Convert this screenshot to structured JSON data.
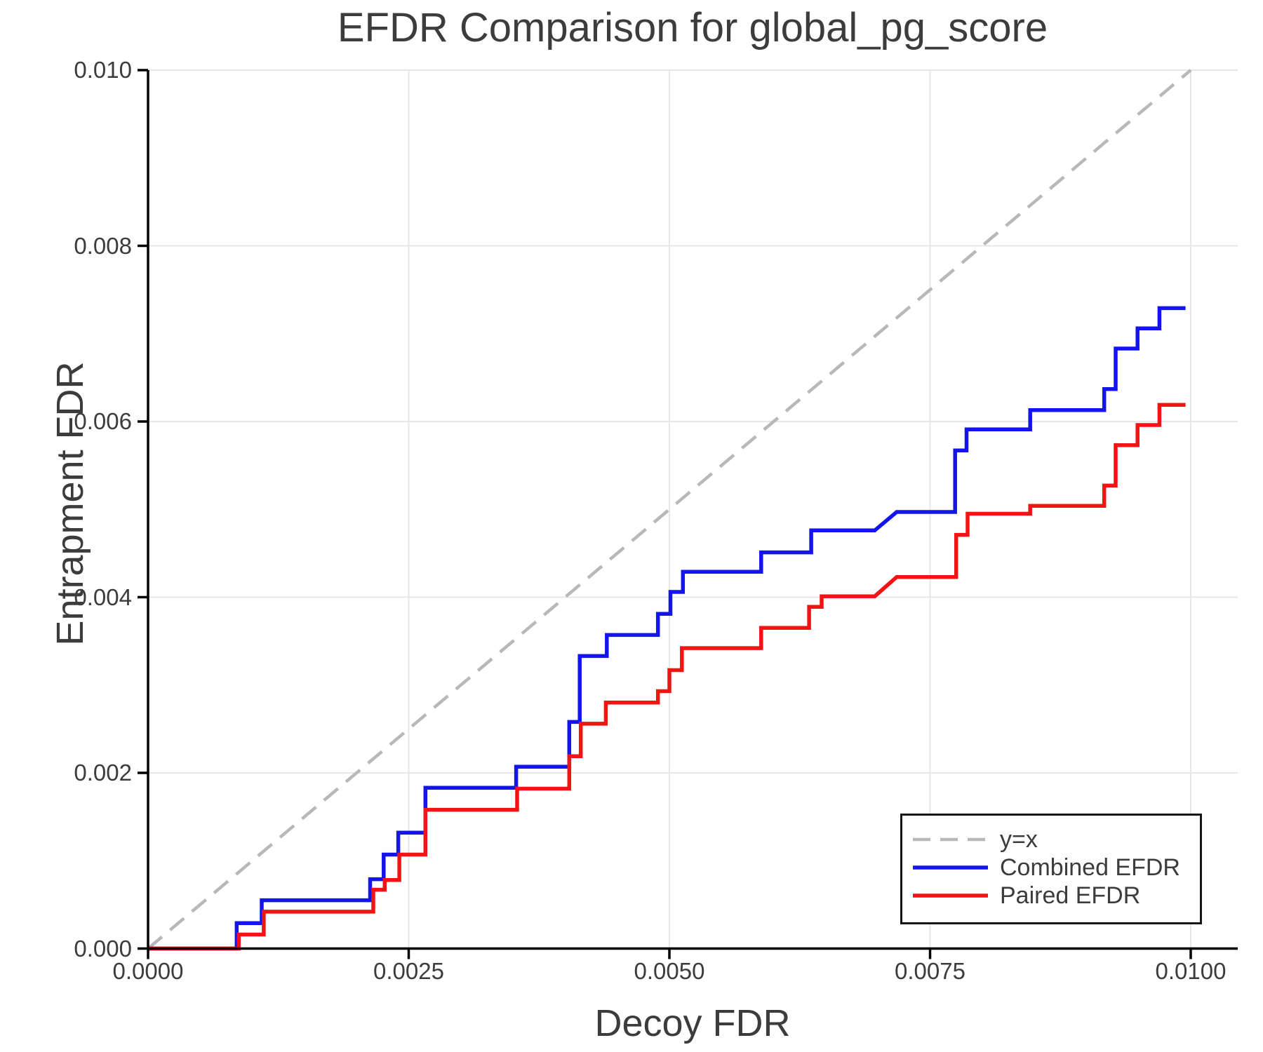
{
  "chart_data": {
    "type": "line",
    "subtype": "step-post",
    "title": "EFDR Comparison for global_pg_score",
    "xlabel": "Decoy FDR",
    "ylabel": "Entrapment FDR",
    "xlim": [
      0.0,
      0.01
    ],
    "ylim": [
      0.0,
      0.01
    ],
    "grid": true,
    "grid_color": "#e7e7e7",
    "axis_color": "#000000",
    "text_color": "#3c3c3c",
    "x_ticks": {
      "values": [
        0.0,
        0.0025,
        0.005,
        0.0075,
        0.01
      ],
      "labels": [
        "0.0000",
        "0.0025",
        "0.0050",
        "0.0075",
        "0.0100"
      ]
    },
    "y_ticks": {
      "values": [
        0.0,
        0.002,
        0.004,
        0.006,
        0.008,
        0.01
      ],
      "labels": [
        "0.000",
        "0.002",
        "0.004",
        "0.006",
        "0.008",
        "0.010"
      ]
    },
    "identity_line": {
      "label": "y=x",
      "color": "#b8b8b8",
      "style": "dashed",
      "from": [
        0.0,
        0.0
      ],
      "to": [
        0.01,
        0.01
      ]
    },
    "legend": {
      "position": "lower right",
      "entries": [
        {
          "label": "y=x",
          "color": "#b8b8b8",
          "style": "dashed"
        },
        {
          "label": "Combined EFDR",
          "color": "#1414f0",
          "style": "solid"
        },
        {
          "label": "Paired EFDR",
          "color": "#f21414",
          "style": "solid"
        }
      ]
    },
    "series": [
      {
        "name": "Combined EFDR",
        "color": "#1414f0",
        "points": [
          [
            0.0,
            0.0
          ],
          [
            0.00085,
            0.0
          ],
          [
            0.00085,
            0.00029
          ],
          [
            0.00109,
            0.00029
          ],
          [
            0.00109,
            0.00055
          ],
          [
            0.00213,
            0.00055
          ],
          [
            0.00213,
            0.00079
          ],
          [
            0.00226,
            0.00079
          ],
          [
            0.00226,
            0.00107
          ],
          [
            0.0024,
            0.00107
          ],
          [
            0.0024,
            0.00132
          ],
          [
            0.00266,
            0.00132
          ],
          [
            0.00266,
            0.00183
          ],
          [
            0.00353,
            0.00183
          ],
          [
            0.00353,
            0.00207
          ],
          [
            0.00404,
            0.00207
          ],
          [
            0.00404,
            0.00258
          ],
          [
            0.00414,
            0.00258
          ],
          [
            0.00414,
            0.00333
          ],
          [
            0.0044,
            0.00333
          ],
          [
            0.0044,
            0.00357
          ],
          [
            0.00489,
            0.00357
          ],
          [
            0.00489,
            0.00381
          ],
          [
            0.00501,
            0.00381
          ],
          [
            0.00501,
            0.00406
          ],
          [
            0.00513,
            0.00406
          ],
          [
            0.00513,
            0.00429
          ],
          [
            0.00588,
            0.00429
          ],
          [
            0.00588,
            0.00451
          ],
          [
            0.00636,
            0.00451
          ],
          [
            0.00636,
            0.00476
          ],
          [
            0.00697,
            0.00476
          ],
          [
            0.00718,
            0.00497
          ],
          [
            0.00774,
            0.00497
          ],
          [
            0.00774,
            0.00567
          ],
          [
            0.00785,
            0.00567
          ],
          [
            0.00785,
            0.00591
          ],
          [
            0.00846,
            0.00591
          ],
          [
            0.00846,
            0.00613
          ],
          [
            0.00917,
            0.00613
          ],
          [
            0.00917,
            0.00637
          ],
          [
            0.00928,
            0.00637
          ],
          [
            0.00928,
            0.00683
          ],
          [
            0.00949,
            0.00683
          ],
          [
            0.00949,
            0.00706
          ],
          [
            0.0097,
            0.00706
          ],
          [
            0.0097,
            0.00729
          ],
          [
            0.00995,
            0.00729
          ]
        ]
      },
      {
        "name": "Paired EFDR",
        "color": "#f21414",
        "points": [
          [
            0.0,
            0.0
          ],
          [
            0.00087,
            0.0
          ],
          [
            0.00087,
            0.00016
          ],
          [
            0.00111,
            0.00016
          ],
          [
            0.00111,
            0.00042
          ],
          [
            0.00216,
            0.00042
          ],
          [
            0.00216,
            0.00067
          ],
          [
            0.00227,
            0.00067
          ],
          [
            0.00227,
            0.00078
          ],
          [
            0.00241,
            0.00078
          ],
          [
            0.00241,
            0.00107
          ],
          [
            0.00266,
            0.00107
          ],
          [
            0.00266,
            0.00158
          ],
          [
            0.00354,
            0.00158
          ],
          [
            0.00354,
            0.00182
          ],
          [
            0.00404,
            0.00182
          ],
          [
            0.00404,
            0.00219
          ],
          [
            0.00415,
            0.00219
          ],
          [
            0.00415,
            0.00256
          ],
          [
            0.00439,
            0.00256
          ],
          [
            0.00439,
            0.0028
          ],
          [
            0.00489,
            0.0028
          ],
          [
            0.00489,
            0.00293
          ],
          [
            0.005,
            0.00293
          ],
          [
            0.005,
            0.00317
          ],
          [
            0.00512,
            0.00317
          ],
          [
            0.00512,
            0.00342
          ],
          [
            0.00588,
            0.00342
          ],
          [
            0.00588,
            0.00365
          ],
          [
            0.00634,
            0.00365
          ],
          [
            0.00634,
            0.00389
          ],
          [
            0.00646,
            0.00389
          ],
          [
            0.00646,
            0.00401
          ],
          [
            0.00697,
            0.00401
          ],
          [
            0.00718,
            0.00423
          ],
          [
            0.00775,
            0.00423
          ],
          [
            0.00775,
            0.00471
          ],
          [
            0.00786,
            0.00471
          ],
          [
            0.00786,
            0.00495
          ],
          [
            0.00846,
            0.00495
          ],
          [
            0.00846,
            0.00504
          ],
          [
            0.00917,
            0.00504
          ],
          [
            0.00917,
            0.00527
          ],
          [
            0.00928,
            0.00527
          ],
          [
            0.00928,
            0.00573
          ],
          [
            0.00949,
            0.00573
          ],
          [
            0.00949,
            0.00596
          ],
          [
            0.0097,
            0.00596
          ],
          [
            0.0097,
            0.00619
          ],
          [
            0.00995,
            0.00619
          ]
        ]
      }
    ]
  }
}
